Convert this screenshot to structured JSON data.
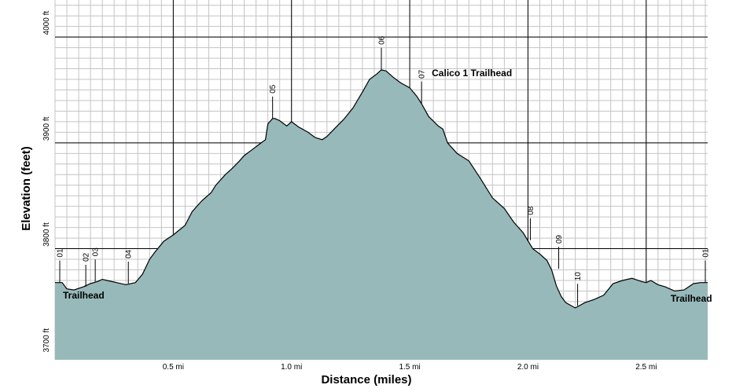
{
  "chart_data": {
    "type": "area",
    "title": "",
    "xlabel": "Distance (miles)",
    "ylabel": "Elevation (feet)",
    "xlim": [
      0,
      2.76
    ],
    "ylim": [
      3695,
      4035
    ],
    "x_ticks": [
      {
        "value": 0.5,
        "label": "0.5 mi"
      },
      {
        "value": 1.0,
        "label": "1.0 mi"
      },
      {
        "value": 1.5,
        "label": "1.5 mi"
      },
      {
        "value": 2.0,
        "label": "2.0 mi"
      },
      {
        "value": 2.5,
        "label": "2.5 mi"
      }
    ],
    "y_ticks": [
      {
        "value": 3700,
        "label": "3700 ft"
      },
      {
        "value": 3800,
        "label": "3800 ft"
      },
      {
        "value": 3900,
        "label": "3900 ft"
      },
      {
        "value": 4000,
        "label": "4000 ft"
      }
    ],
    "grid": true,
    "fill_color": "#97b9b9",
    "line_color": "#000000",
    "series": [
      {
        "x": [
          0.0,
          0.03,
          0.05,
          0.08,
          0.12,
          0.15,
          0.18,
          0.2,
          0.22,
          0.26,
          0.3,
          0.34,
          0.37,
          0.4,
          0.42,
          0.46,
          0.5,
          0.55,
          0.58,
          0.62,
          0.66,
          0.68,
          0.72,
          0.75,
          0.78,
          0.8,
          0.83,
          0.86,
          0.89,
          0.9,
          0.92,
          0.93,
          0.95,
          0.98,
          1.0,
          1.03,
          1.07,
          1.1,
          1.13,
          1.15,
          1.18,
          1.22,
          1.26,
          1.3,
          1.33,
          1.36,
          1.38,
          1.4,
          1.43,
          1.46,
          1.5,
          1.53,
          1.55,
          1.58,
          1.62,
          1.64,
          1.66,
          1.7,
          1.75,
          1.8,
          1.85,
          1.9,
          1.94,
          1.98,
          2.02,
          2.05,
          2.08,
          2.1,
          2.12,
          2.14,
          2.16,
          2.2,
          2.24,
          2.28,
          2.32,
          2.36,
          2.4,
          2.44,
          2.48,
          2.5,
          2.52,
          2.55,
          2.58,
          2.62,
          2.66,
          2.7,
          2.73,
          2.76
        ],
        "values": [
          3768,
          3768,
          3762,
          3761,
          3764,
          3767,
          3769,
          3771,
          3770,
          3768,
          3766,
          3768,
          3776,
          3790,
          3796,
          3807,
          3813,
          3822,
          3835,
          3845,
          3853,
          3860,
          3870,
          3876,
          3883,
          3888,
          3893,
          3898,
          3903,
          3918,
          3923,
          3923,
          3921,
          3916,
          3920,
          3915,
          3910,
          3905,
          3903,
          3906,
          3913,
          3922,
          3933,
          3948,
          3960,
          3965,
          3969,
          3968,
          3962,
          3957,
          3952,
          3944,
          3937,
          3925,
          3916,
          3913,
          3900,
          3890,
          3883,
          3866,
          3848,
          3838,
          3825,
          3815,
          3800,
          3795,
          3789,
          3780,
          3765,
          3755,
          3749,
          3744,
          3749,
          3752,
          3756,
          3767,
          3770,
          3772,
          3769,
          3768,
          3770,
          3766,
          3764,
          3760,
          3761,
          3767,
          3768,
          3768
        ]
      }
    ],
    "waypoints": [
      {
        "label": "01",
        "x": 0.02,
        "y": 3768
      },
      {
        "label": "02",
        "x": 0.13,
        "y": 3764
      },
      {
        "label": "03",
        "x": 0.17,
        "y": 3769
      },
      {
        "label": "04",
        "x": 0.31,
        "y": 3767
      },
      {
        "label": "05",
        "x": 0.92,
        "y": 3923
      },
      {
        "label": "06",
        "x": 1.38,
        "y": 3969
      },
      {
        "label": "07",
        "x": 1.55,
        "y": 3937
      },
      {
        "label": "08",
        "x": 2.01,
        "y": 3808
      },
      {
        "label": "09",
        "x": 2.13,
        "y": 3781
      },
      {
        "label": "10",
        "x": 2.21,
        "y": 3746
      },
      {
        "label": "01",
        "x": 2.75,
        "y": 3768
      }
    ],
    "annotations": [
      {
        "text": "Trailhead",
        "x": 0.02,
        "y": 3756
      },
      {
        "text": "Calico 1 Trailhead",
        "x": 1.58,
        "y": 3966
      },
      {
        "text": "Trailhead",
        "x": 2.59,
        "y": 3753
      }
    ]
  }
}
